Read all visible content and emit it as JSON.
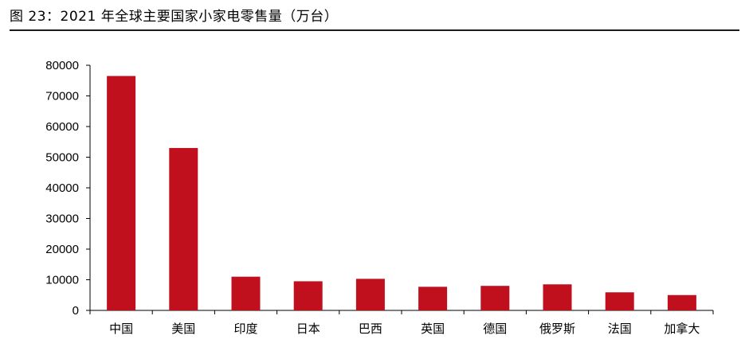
{
  "figure": {
    "title": "图 23：2021 年全球主要国家小家电零售量（万台）"
  },
  "chart_data": {
    "type": "bar",
    "categories": [
      "中国",
      "美国",
      "印度",
      "日本",
      "巴西",
      "英国",
      "德国",
      "俄罗斯",
      "法国",
      "加拿大"
    ],
    "values": [
      76500,
      53000,
      11000,
      9500,
      10300,
      7700,
      8000,
      8500,
      5900,
      5000
    ],
    "ylim": [
      0,
      80000
    ],
    "yticks": [
      0,
      10000,
      20000,
      30000,
      40000,
      50000,
      60000,
      70000,
      80000
    ],
    "bar_color": "#c0101e",
    "grid": false,
    "legend": "none"
  }
}
